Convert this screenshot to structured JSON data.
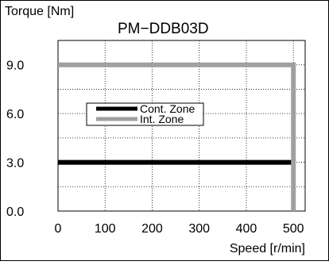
{
  "chart_data": {
    "type": "line",
    "title": "PM−DDB03D",
    "ylabel": "Torque [Nm]",
    "xlabel": "Speed [r/min]",
    "xlim": [
      0,
      525
    ],
    "ylim": [
      0,
      10.5
    ],
    "x_ticks": [
      0,
      100,
      200,
      300,
      400,
      500
    ],
    "x_tick_labels": [
      "0",
      "100",
      "200",
      "300",
      "400",
      "500"
    ],
    "y_ticks": [
      0,
      3,
      6,
      9
    ],
    "y_tick_labels": [
      "0.0",
      "3.0",
      "6.0",
      "9.0"
    ],
    "grid": true,
    "grid_style": "dotted",
    "x_grid": [
      100,
      200,
      300,
      400,
      500
    ],
    "y_grid": [
      1.5,
      3,
      4.5,
      6,
      7.5,
      9
    ],
    "legend_position": "center-left",
    "series": [
      {
        "name": "Cont. Zone",
        "color": "#000000",
        "x": [
          0,
          500
        ],
        "y": [
          3.0,
          3.0
        ]
      },
      {
        "name": "Int. Zone",
        "color": "#a0a0a0",
        "x": [
          0,
          500,
          500
        ],
        "y": [
          9.0,
          9.0,
          0.0
        ]
      }
    ]
  }
}
